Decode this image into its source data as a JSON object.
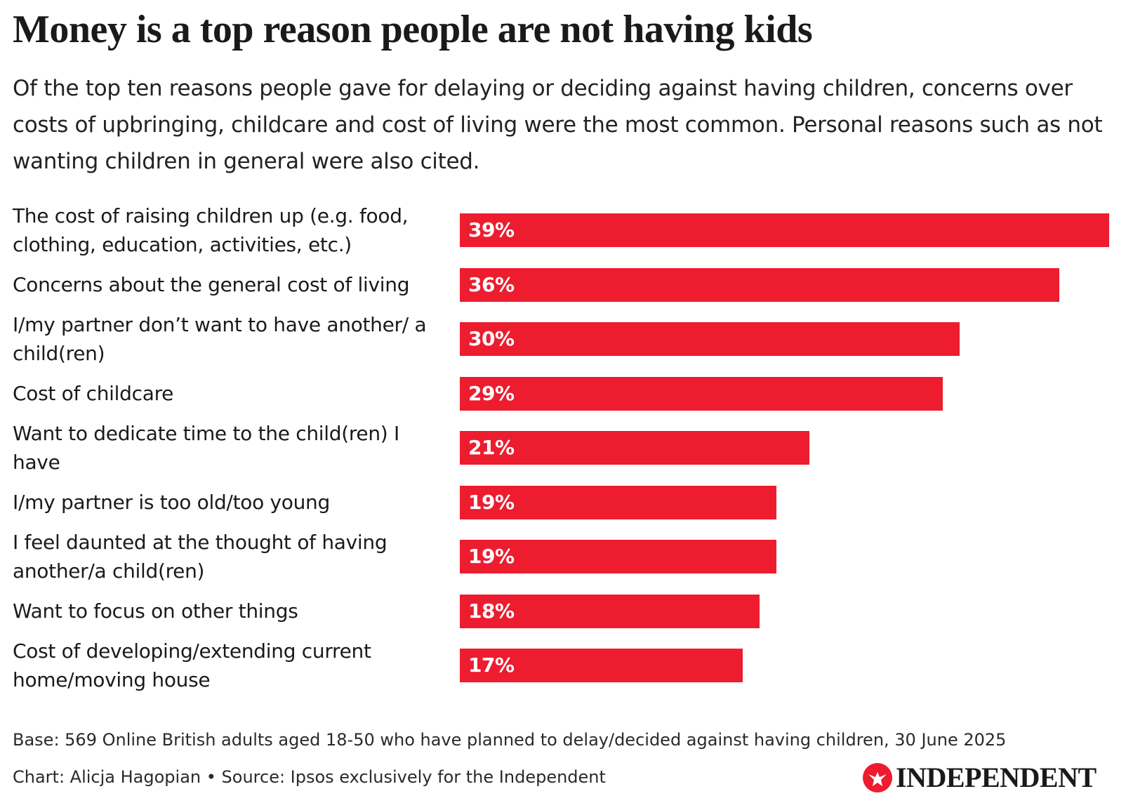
{
  "header": {
    "title": "Money is a top reason people are not having kids",
    "subtitle": "Of the top ten reasons people gave for delaying or deciding against having children, concerns over costs of upbringing, childcare and cost of living were the most common. Personal reasons such as not wanting children in general were also cited."
  },
  "chart_data": {
    "type": "bar",
    "orientation": "horizontal",
    "categories": [
      "The cost of raising children up (e.g. food, clothing, education, activities, etc.)",
      "Concerns about the general cost of living",
      "I/my partner don’t want to have another/ a child(ren)",
      "Cost of childcare",
      "Want to dedicate time to the child(ren) I have",
      "I/my partner is too old/too young",
      "I feel daunted at the thought of having another/a child(ren)",
      "Want to focus on other things",
      "Cost of developing/extending current home/moving house"
    ],
    "values": [
      39,
      36,
      30,
      29,
      21,
      19,
      19,
      18,
      17
    ],
    "value_labels": [
      "39%",
      "36%",
      "30%",
      "29%",
      "21%",
      "19%",
      "19%",
      "18%",
      "17%"
    ],
    "xlim": [
      0,
      39
    ],
    "grid": false,
    "bar_color": "#ed1c2f",
    "value_label_color": "#ffffff"
  },
  "footer": {
    "base": "Base: 569 Online British adults aged 18-50 who have planned to delay/decided against having children, 30 June 2025",
    "credit": "Chart: Alicja Hagopian • Source: Ipsos exclusively for the Independent",
    "logo_text": "INDEPENDENT",
    "logo_icon": "eagle-icon",
    "logo_color": "#ed1c2f"
  }
}
